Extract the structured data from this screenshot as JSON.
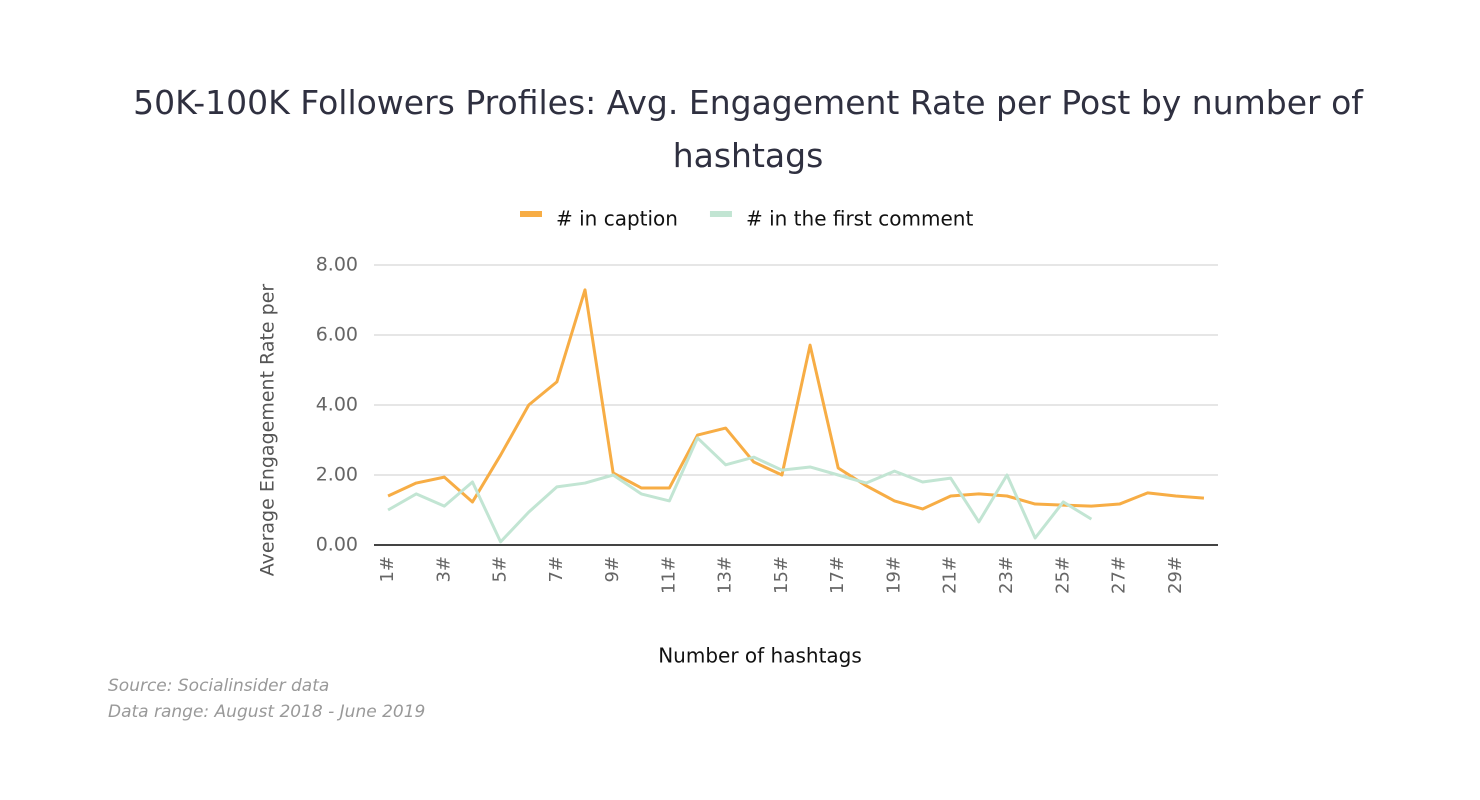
{
  "chart_data": {
    "type": "line",
    "title": "50K-100K Followers Profiles: Avg. Engagement Rate per Post by number of hashtags",
    "x_label": "Number of hashtags",
    "y_label": "Average Engagement Rate per",
    "footnotes": [
      "Source: Socialinsider data",
      "Data range: August 2018 - June 2019"
    ],
    "categories": [
      "1#",
      null,
      "3#",
      null,
      "5#",
      null,
      "7#",
      null,
      "9#",
      null,
      "11#",
      null,
      "13#",
      null,
      "15#",
      null,
      "17#",
      null,
      "19#",
      null,
      "21#",
      null,
      "23#",
      null,
      "25#",
      null,
      "27#",
      null,
      "29#",
      null
    ],
    "series": [
      {
        "name": "# in caption",
        "color": "#f7ad45",
        "values": [
          1.4,
          1.77,
          1.94,
          1.23,
          2.57,
          4.0,
          4.66,
          7.29,
          2.06,
          1.63,
          1.63,
          3.14,
          3.34,
          2.37,
          2.0,
          5.71,
          2.2,
          1.69,
          1.26,
          1.03,
          1.4,
          1.46,
          1.4,
          1.17,
          1.14,
          1.11,
          1.17,
          1.49,
          1.4,
          1.34
        ]
      },
      {
        "name": "# in the first comment",
        "color": "#c2e5d3",
        "values": [
          1.0,
          1.46,
          1.11,
          1.8,
          0.09,
          0.94,
          1.66,
          1.77,
          2.0,
          1.46,
          1.26,
          3.06,
          2.29,
          2.51,
          2.14,
          2.23,
          2.0,
          1.77,
          2.11,
          1.8,
          1.91,
          0.66,
          2.0,
          0.2,
          1.23,
          0.74,
          null,
          null,
          null,
          null
        ]
      }
    ],
    "ylim": [
      0,
      8
    ],
    "yticks": [
      {
        "value": 0,
        "label": "0.00"
      },
      {
        "value": 2,
        "label": "2.00"
      },
      {
        "value": 4,
        "label": "4.00"
      },
      {
        "value": 6,
        "label": "6.00"
      },
      {
        "value": 8,
        "label": "8.00"
      }
    ],
    "grid": true,
    "legend": "top"
  }
}
